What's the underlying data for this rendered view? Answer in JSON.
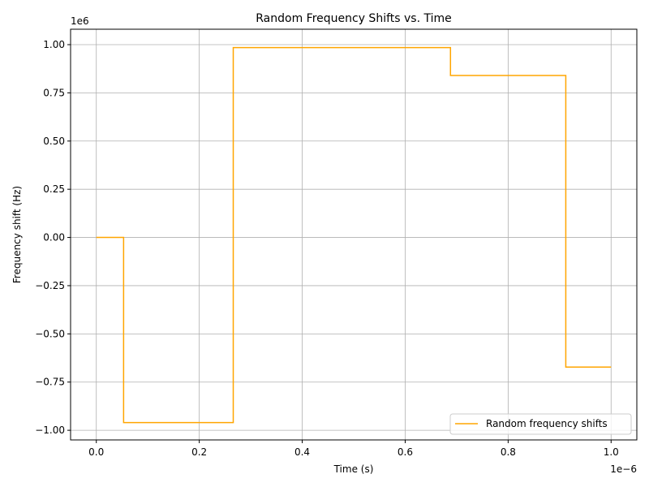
{
  "chart_data": {
    "type": "line",
    "title": "Random Frequency Shifts vs. Time",
    "xlabel": "Time (s)",
    "ylabel": "Frequency shift (Hz)",
    "x_offset_text": "1e−6",
    "y_offset_text": "1e6",
    "x_ticks": [
      "0.0",
      "0.2",
      "0.4",
      "0.6",
      "0.8",
      "1.0"
    ],
    "y_ticks": [
      "−1.00",
      "−0.75",
      "−0.50",
      "−0.25",
      "0.00",
      "0.25",
      "0.50",
      "0.75",
      "1.00"
    ],
    "xlim": [
      -5e-08,
      1.05e-06
    ],
    "ylim": [
      -1050000.0,
      1080000.0
    ],
    "grid": true,
    "legend_position": "lower-right",
    "series": [
      {
        "name": "Random frequency shifts",
        "color": "#FFA500",
        "step": true,
        "x": [
          0,
          5.3e-08,
          5.3e-08,
          2.66e-07,
          2.66e-07,
          6.88e-07,
          6.88e-07,
          9.12e-07,
          9.12e-07,
          1e-06
        ],
        "y": [
          0,
          0,
          -960000,
          -960000,
          985000,
          985000,
          840000,
          840000,
          -672000,
          -672000
        ]
      }
    ]
  }
}
